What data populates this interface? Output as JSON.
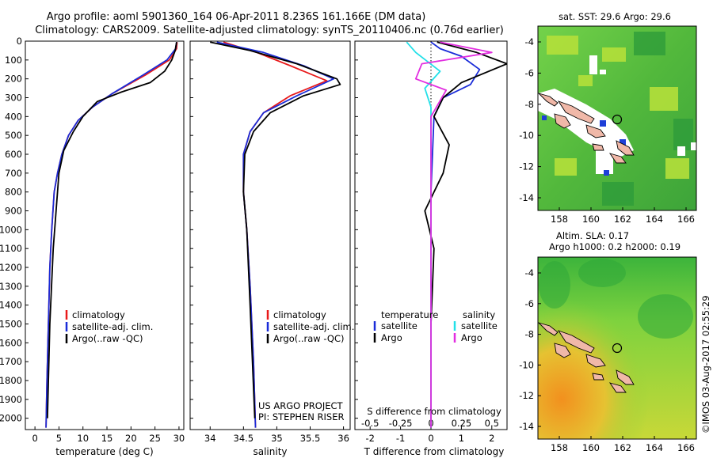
{
  "header": {
    "title_line1": "Argo profile: aoml 5901360_164 06-Apr-2011 8.236S 161.166E (DM data)",
    "title_line2": "Climatology: CARS2009. Satellite-adjusted climatology: synTS_20110406.nc (0.76d earlier)"
  },
  "colors": {
    "climatology": "#e8191a",
    "satellite": "#1a2cd8",
    "argo": "#000000",
    "s_satellite": "#22e0e8",
    "s_argo": "#e22ee0",
    "land": "#f0b8a8"
  },
  "depth_axis": {
    "ticks": [
      "0",
      "100",
      "200",
      "300",
      "400",
      "500",
      "600",
      "700",
      "800",
      "900",
      "1000",
      "1100",
      "1200",
      "1300",
      "1400",
      "1500",
      "1600",
      "1700",
      "1800",
      "1900",
      "2000"
    ]
  },
  "chart_data": [
    {
      "type": "line",
      "panel": "temperature",
      "xlabel": "temperature (deg C)",
      "xlim": [
        -2,
        31
      ],
      "ylim": [
        2060,
        0
      ],
      "xticks": [
        "0",
        "5",
        "10",
        "15",
        "20",
        "25",
        "30"
      ],
      "legend": [
        "climatology",
        "satellite-adj. clim.",
        "Argo(..raw -QC)"
      ],
      "series": [
        {
          "name": "climatology",
          "x": [
            29.6,
            29.5,
            28,
            23,
            16,
            12,
            9,
            7,
            5.6,
            4.7,
            4.0,
            3.5,
            3.1,
            2.8,
            2.5,
            2.3
          ],
          "y": [
            5,
            40,
            100,
            180,
            280,
            350,
            420,
            500,
            600,
            700,
            800,
            1000,
            1200,
            1500,
            1800,
            2050
          ]
        },
        {
          "name": "satellite-adj. clim.",
          "x": [
            29.5,
            29.3,
            27.5,
            22.5,
            16,
            12,
            9,
            7,
            5.6,
            4.7,
            4.0,
            3.5,
            3.1,
            2.8,
            2.5,
            2.3
          ],
          "y": [
            5,
            40,
            100,
            180,
            280,
            350,
            420,
            500,
            600,
            700,
            800,
            1000,
            1200,
            1500,
            1800,
            2050
          ]
        },
        {
          "name": "Argo(..raw -QC)",
          "x": [
            29.5,
            29.2,
            28.5,
            27,
            24,
            18,
            13,
            10,
            8,
            6,
            5,
            4.4,
            3.8,
            3.1,
            2.6
          ],
          "y": [
            5,
            50,
            100,
            160,
            220,
            270,
            320,
            400,
            480,
            580,
            700,
            900,
            1100,
            1500,
            2000
          ]
        }
      ]
    },
    {
      "type": "line",
      "panel": "salinity",
      "xlabel": "salinity",
      "xlim": [
        33.7,
        36.1
      ],
      "ylim": [
        2060,
        0
      ],
      "xticks": [
        "34",
        "34.5",
        "35",
        "35.5",
        "36"
      ],
      "legend": [
        "climatology",
        "satellite-adj. clim.",
        "Argo(..raw -QC)"
      ],
      "series": [
        {
          "name": "climatology",
          "x": [
            34.2,
            34.7,
            35.2,
            35.75,
            35.2,
            34.8,
            34.6,
            34.5,
            34.5,
            34.55,
            34.6,
            34.65,
            34.68
          ],
          "y": [
            5,
            60,
            130,
            210,
            290,
            380,
            480,
            600,
            800,
            1000,
            1300,
            1700,
            2050
          ]
        },
        {
          "name": "satellite-adj. clim.",
          "x": [
            34.1,
            34.8,
            35.4,
            35.85,
            35.3,
            34.8,
            34.6,
            34.5,
            34.5,
            34.55,
            34.6,
            34.65,
            34.68
          ],
          "y": [
            5,
            60,
            130,
            200,
            290,
            380,
            480,
            600,
            800,
            1000,
            1300,
            1700,
            2050
          ]
        },
        {
          "name": "Argo(..raw -QC)",
          "x": [
            34.0,
            34.6,
            35.3,
            35.9,
            35.95,
            35.4,
            34.9,
            34.65,
            34.52,
            34.5,
            34.55,
            34.6,
            34.67
          ],
          "y": [
            5,
            50,
            120,
            200,
            230,
            290,
            380,
            480,
            600,
            800,
            1000,
            1400,
            2000
          ]
        }
      ]
    },
    {
      "type": "line",
      "panel": "difference",
      "xlabel": "T difference from climatology",
      "xlabel_top": "S difference from climatology",
      "xlim": [
        -2.5,
        2.5
      ],
      "ylim": [
        2060,
        0
      ],
      "xticks": [
        "-2",
        "-1",
        "0",
        "1",
        "2"
      ],
      "xticks_top": [
        "-0.5",
        "-0.25",
        "0",
        "0.25",
        "0.5"
      ],
      "legend_temperature_title": "temperature",
      "legend_salinity_title": "salinity",
      "legend": [
        "satellite",
        "Argo",
        "satellite",
        "Argo"
      ],
      "series": [
        {
          "name": "satellite",
          "x": [
            0,
            0.3,
            1.0,
            1.6,
            1.3,
            0.4,
            0.1,
            0,
            0
          ],
          "y": [
            5,
            40,
            80,
            150,
            230,
            300,
            400,
            800,
            2050
          ]
        },
        {
          "name": "Argo",
          "x": [
            0.2,
            1.5,
            2.5,
            1.0,
            0.4,
            0.1,
            0.6,
            0.4,
            -0.2,
            0.1,
            0,
            0
          ],
          "y": [
            5,
            60,
            120,
            220,
            300,
            400,
            550,
            700,
            900,
            1100,
            1500,
            2050
          ]
        },
        {
          "name": "satellite",
          "x": [
            -0.8,
            -0.5,
            0.3,
            -0.2,
            0,
            0
          ],
          "y": [
            5,
            60,
            160,
            250,
            350,
            2050
          ]
        },
        {
          "name": "Argo",
          "x": [
            0.3,
            2.0,
            -0.3,
            -0.5,
            0.5,
            0,
            0
          ],
          "y": [
            5,
            60,
            120,
            200,
            260,
            400,
            2050
          ]
        }
      ]
    }
  ],
  "annotations": {
    "project": "US ARGO PROJECT",
    "pi": "PI: STEPHEN RISER"
  },
  "map_top": {
    "title": "sat. SST: 29.6 Argo: 29.6",
    "yticks": [
      "-4",
      "-6",
      "-8",
      "-10",
      "-12",
      "-14"
    ],
    "xticks": [
      "158",
      "160",
      "162",
      "164",
      "166"
    ]
  },
  "map_bottom": {
    "title1": "Altim. SLA: 0.17",
    "title2": "Argo h1000: 0.2 h2000: 0.19",
    "yticks": [
      "-4",
      "-6",
      "-8",
      "-10",
      "-12",
      "-14"
    ],
    "xticks": [
      "158",
      "160",
      "162",
      "164",
      "166"
    ]
  },
  "footer": {
    "stamp": "©IMOS 03-Aug-2017 02:55:29"
  }
}
